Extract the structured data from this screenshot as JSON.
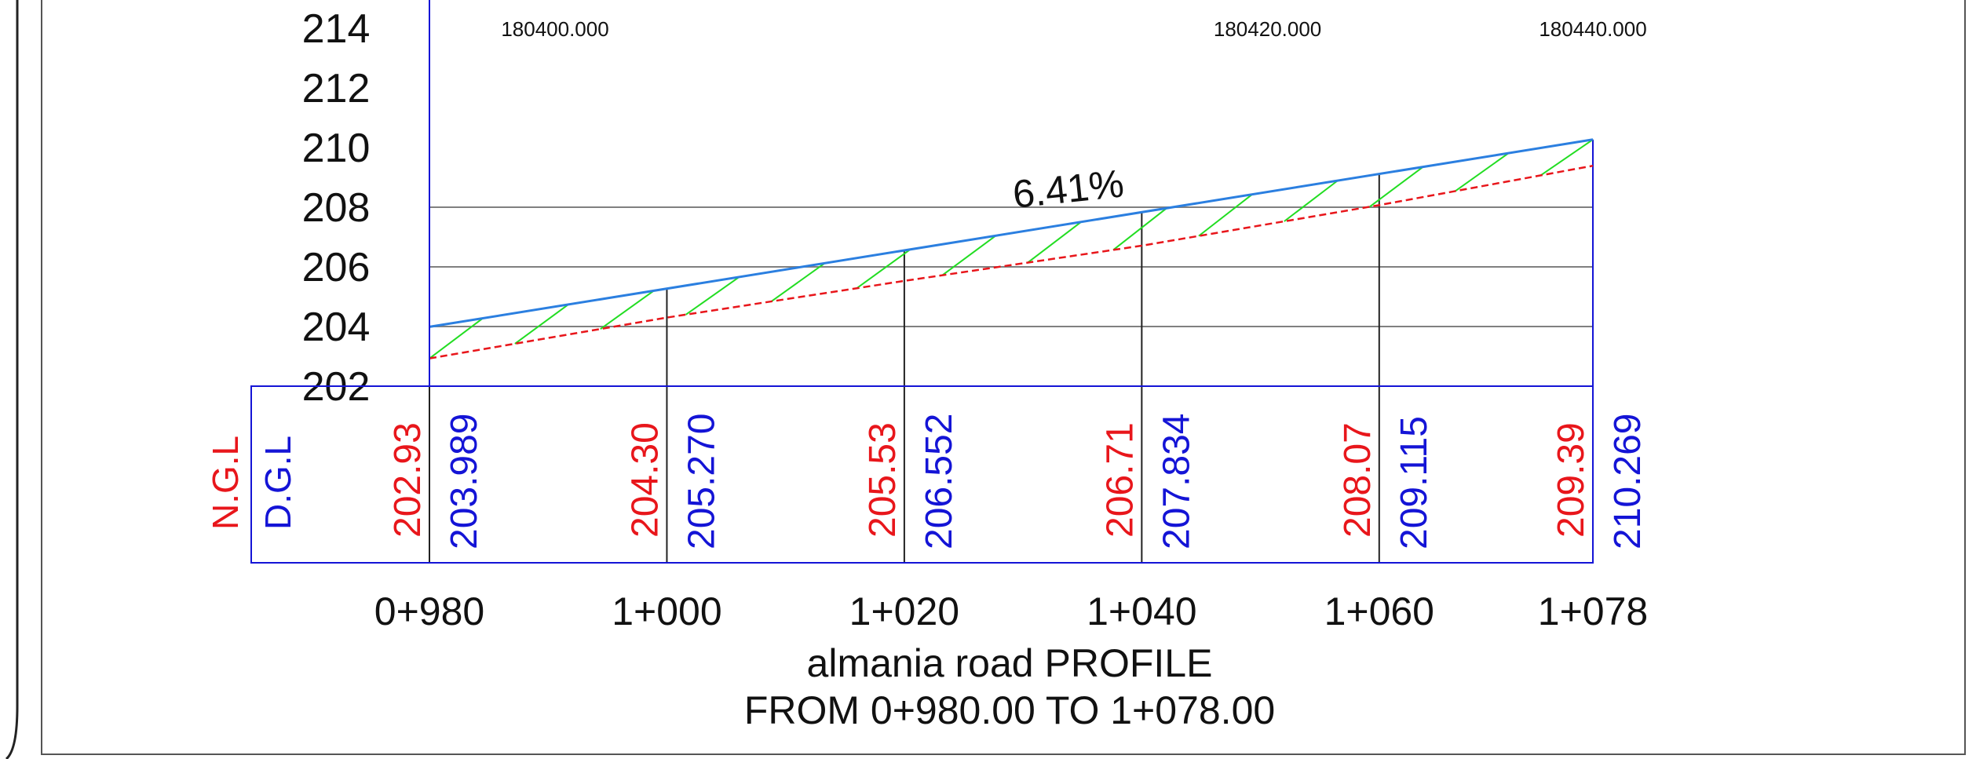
{
  "drawing": {
    "title": "almania road PROFILE",
    "subtitle": "FROM 0+980.00 TO 1+078.00",
    "grade_label": "6.41%",
    "legend": {
      "ngl": "N.G.L",
      "dgl": "D.G.L"
    },
    "colors": {
      "ngl": "#e8161b",
      "dgl": "#1414d6",
      "design_line": "#2b7fe0",
      "ground_line": "#e8161b",
      "hatch": "#22dd22",
      "grid": "#808080",
      "axis": "#1414d6"
    },
    "elevation_ticks": [
      "214",
      "212",
      "210",
      "208",
      "206",
      "204",
      "202"
    ],
    "elevation_values": [
      214,
      212,
      210,
      208,
      206,
      204,
      202
    ],
    "elevation_range": [
      202,
      214
    ],
    "station_range": [
      980,
      1078
    ],
    "easting_labels": [
      {
        "text": "180400.000",
        "station": 980
      },
      {
        "text": "180420.000",
        "station": 1042
      },
      {
        "text": "180440.000",
        "station": 1078
      }
    ],
    "stations": [
      {
        "label": "0+980",
        "station": 980
      },
      {
        "label": "1+000",
        "station": 1000
      },
      {
        "label": "1+020",
        "station": 1020
      },
      {
        "label": "1+040",
        "station": 1040
      },
      {
        "label": "1+060",
        "station": 1060
      },
      {
        "label": "1+078",
        "station": 1078
      }
    ],
    "ngl_values": [
      "202.93",
      "204.30",
      "205.53",
      "206.71",
      "208.07",
      "209.39"
    ],
    "dgl_values": [
      "203.989",
      "205.270",
      "206.552",
      "207.834",
      "209.115",
      "210.269"
    ],
    "ground_profile": [
      [
        980,
        202.93
      ],
      [
        1000,
        204.3
      ],
      [
        1020,
        205.53
      ],
      [
        1040,
        206.71
      ],
      [
        1060,
        208.07
      ],
      [
        1078,
        209.39
      ]
    ],
    "design_profile": [
      [
        980,
        203.989
      ],
      [
        1078,
        210.269
      ]
    ]
  }
}
